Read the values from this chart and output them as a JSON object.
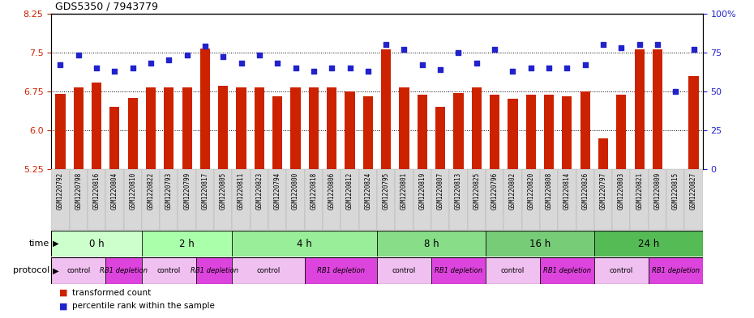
{
  "title": "GDS5350 / 7943779",
  "samples": [
    "GSM1220792",
    "GSM1220798",
    "GSM1220816",
    "GSM1220804",
    "GSM1220810",
    "GSM1220822",
    "GSM1220793",
    "GSM1220799",
    "GSM1220817",
    "GSM1220805",
    "GSM1220811",
    "GSM1220823",
    "GSM1220794",
    "GSM1220800",
    "GSM1220818",
    "GSM1220806",
    "GSM1220812",
    "GSM1220824",
    "GSM1220795",
    "GSM1220801",
    "GSM1220819",
    "GSM1220807",
    "GSM1220813",
    "GSM1220825",
    "GSM1220796",
    "GSM1220802",
    "GSM1220820",
    "GSM1220808",
    "GSM1220814",
    "GSM1220826",
    "GSM1220797",
    "GSM1220803",
    "GSM1220821",
    "GSM1220809",
    "GSM1220815",
    "GSM1220827"
  ],
  "bar_values": [
    6.7,
    6.83,
    6.92,
    6.45,
    6.62,
    6.83,
    6.83,
    6.83,
    7.58,
    6.86,
    6.83,
    6.83,
    6.65,
    6.83,
    6.83,
    6.83,
    6.75,
    6.65,
    7.55,
    6.83,
    6.68,
    6.45,
    6.72,
    6.83,
    6.68,
    6.6,
    6.68,
    6.68,
    6.65,
    6.75,
    5.85,
    6.68,
    7.55,
    7.55,
    5.15,
    7.05
  ],
  "percentile_values": [
    67,
    73,
    65,
    63,
    65,
    68,
    70,
    73,
    79,
    72,
    68,
    73,
    68,
    65,
    63,
    65,
    65,
    63,
    80,
    77,
    67,
    64,
    75,
    68,
    77,
    63,
    65,
    65,
    65,
    67,
    80,
    78,
    80,
    80,
    50,
    77
  ],
  "time_groups": [
    {
      "label": "0 h",
      "start": 0,
      "end": 5,
      "color": "#ccffcc"
    },
    {
      "label": "2 h",
      "start": 5,
      "end": 10,
      "color": "#aaffaa"
    },
    {
      "label": "4 h",
      "start": 10,
      "end": 18,
      "color": "#99ee99"
    },
    {
      "label": "8 h",
      "start": 18,
      "end": 24,
      "color": "#88dd88"
    },
    {
      "label": "16 h",
      "start": 24,
      "end": 30,
      "color": "#77cc77"
    },
    {
      "label": "24 h",
      "start": 30,
      "end": 36,
      "color": "#55bb55"
    }
  ],
  "protocol_groups": [
    {
      "label": "control",
      "start": 0,
      "end": 3,
      "color": "#f0c0f0"
    },
    {
      "label": "RB1 depletion",
      "start": 3,
      "end": 5,
      "color": "#dd44dd"
    },
    {
      "label": "control",
      "start": 5,
      "end": 8,
      "color": "#f0c0f0"
    },
    {
      "label": "RB1 depletion",
      "start": 8,
      "end": 10,
      "color": "#dd44dd"
    },
    {
      "label": "control",
      "start": 10,
      "end": 14,
      "color": "#f0c0f0"
    },
    {
      "label": "RB1 depletion",
      "start": 14,
      "end": 18,
      "color": "#dd44dd"
    },
    {
      "label": "control",
      "start": 18,
      "end": 21,
      "color": "#f0c0f0"
    },
    {
      "label": "RB1 depletion",
      "start": 21,
      "end": 24,
      "color": "#dd44dd"
    },
    {
      "label": "control",
      "start": 24,
      "end": 27,
      "color": "#f0c0f0"
    },
    {
      "label": "RB1 depletion",
      "start": 27,
      "end": 30,
      "color": "#dd44dd"
    },
    {
      "label": "control",
      "start": 30,
      "end": 33,
      "color": "#f0c0f0"
    },
    {
      "label": "RB1 depletion",
      "start": 33,
      "end": 36,
      "color": "#dd44dd"
    }
  ],
  "bar_color": "#cc2200",
  "dot_color": "#2222cc",
  "ylim_left": [
    5.25,
    8.25
  ],
  "ylim_right": [
    0,
    100
  ],
  "yticks_left": [
    5.25,
    6.0,
    6.75,
    7.5,
    8.25
  ],
  "yticks_right": [
    0,
    25,
    50,
    75,
    100
  ],
  "grid_values": [
    6.0,
    6.75,
    7.5
  ],
  "bg_color": "#ffffff",
  "tick_label_bg": "#d8d8d8"
}
